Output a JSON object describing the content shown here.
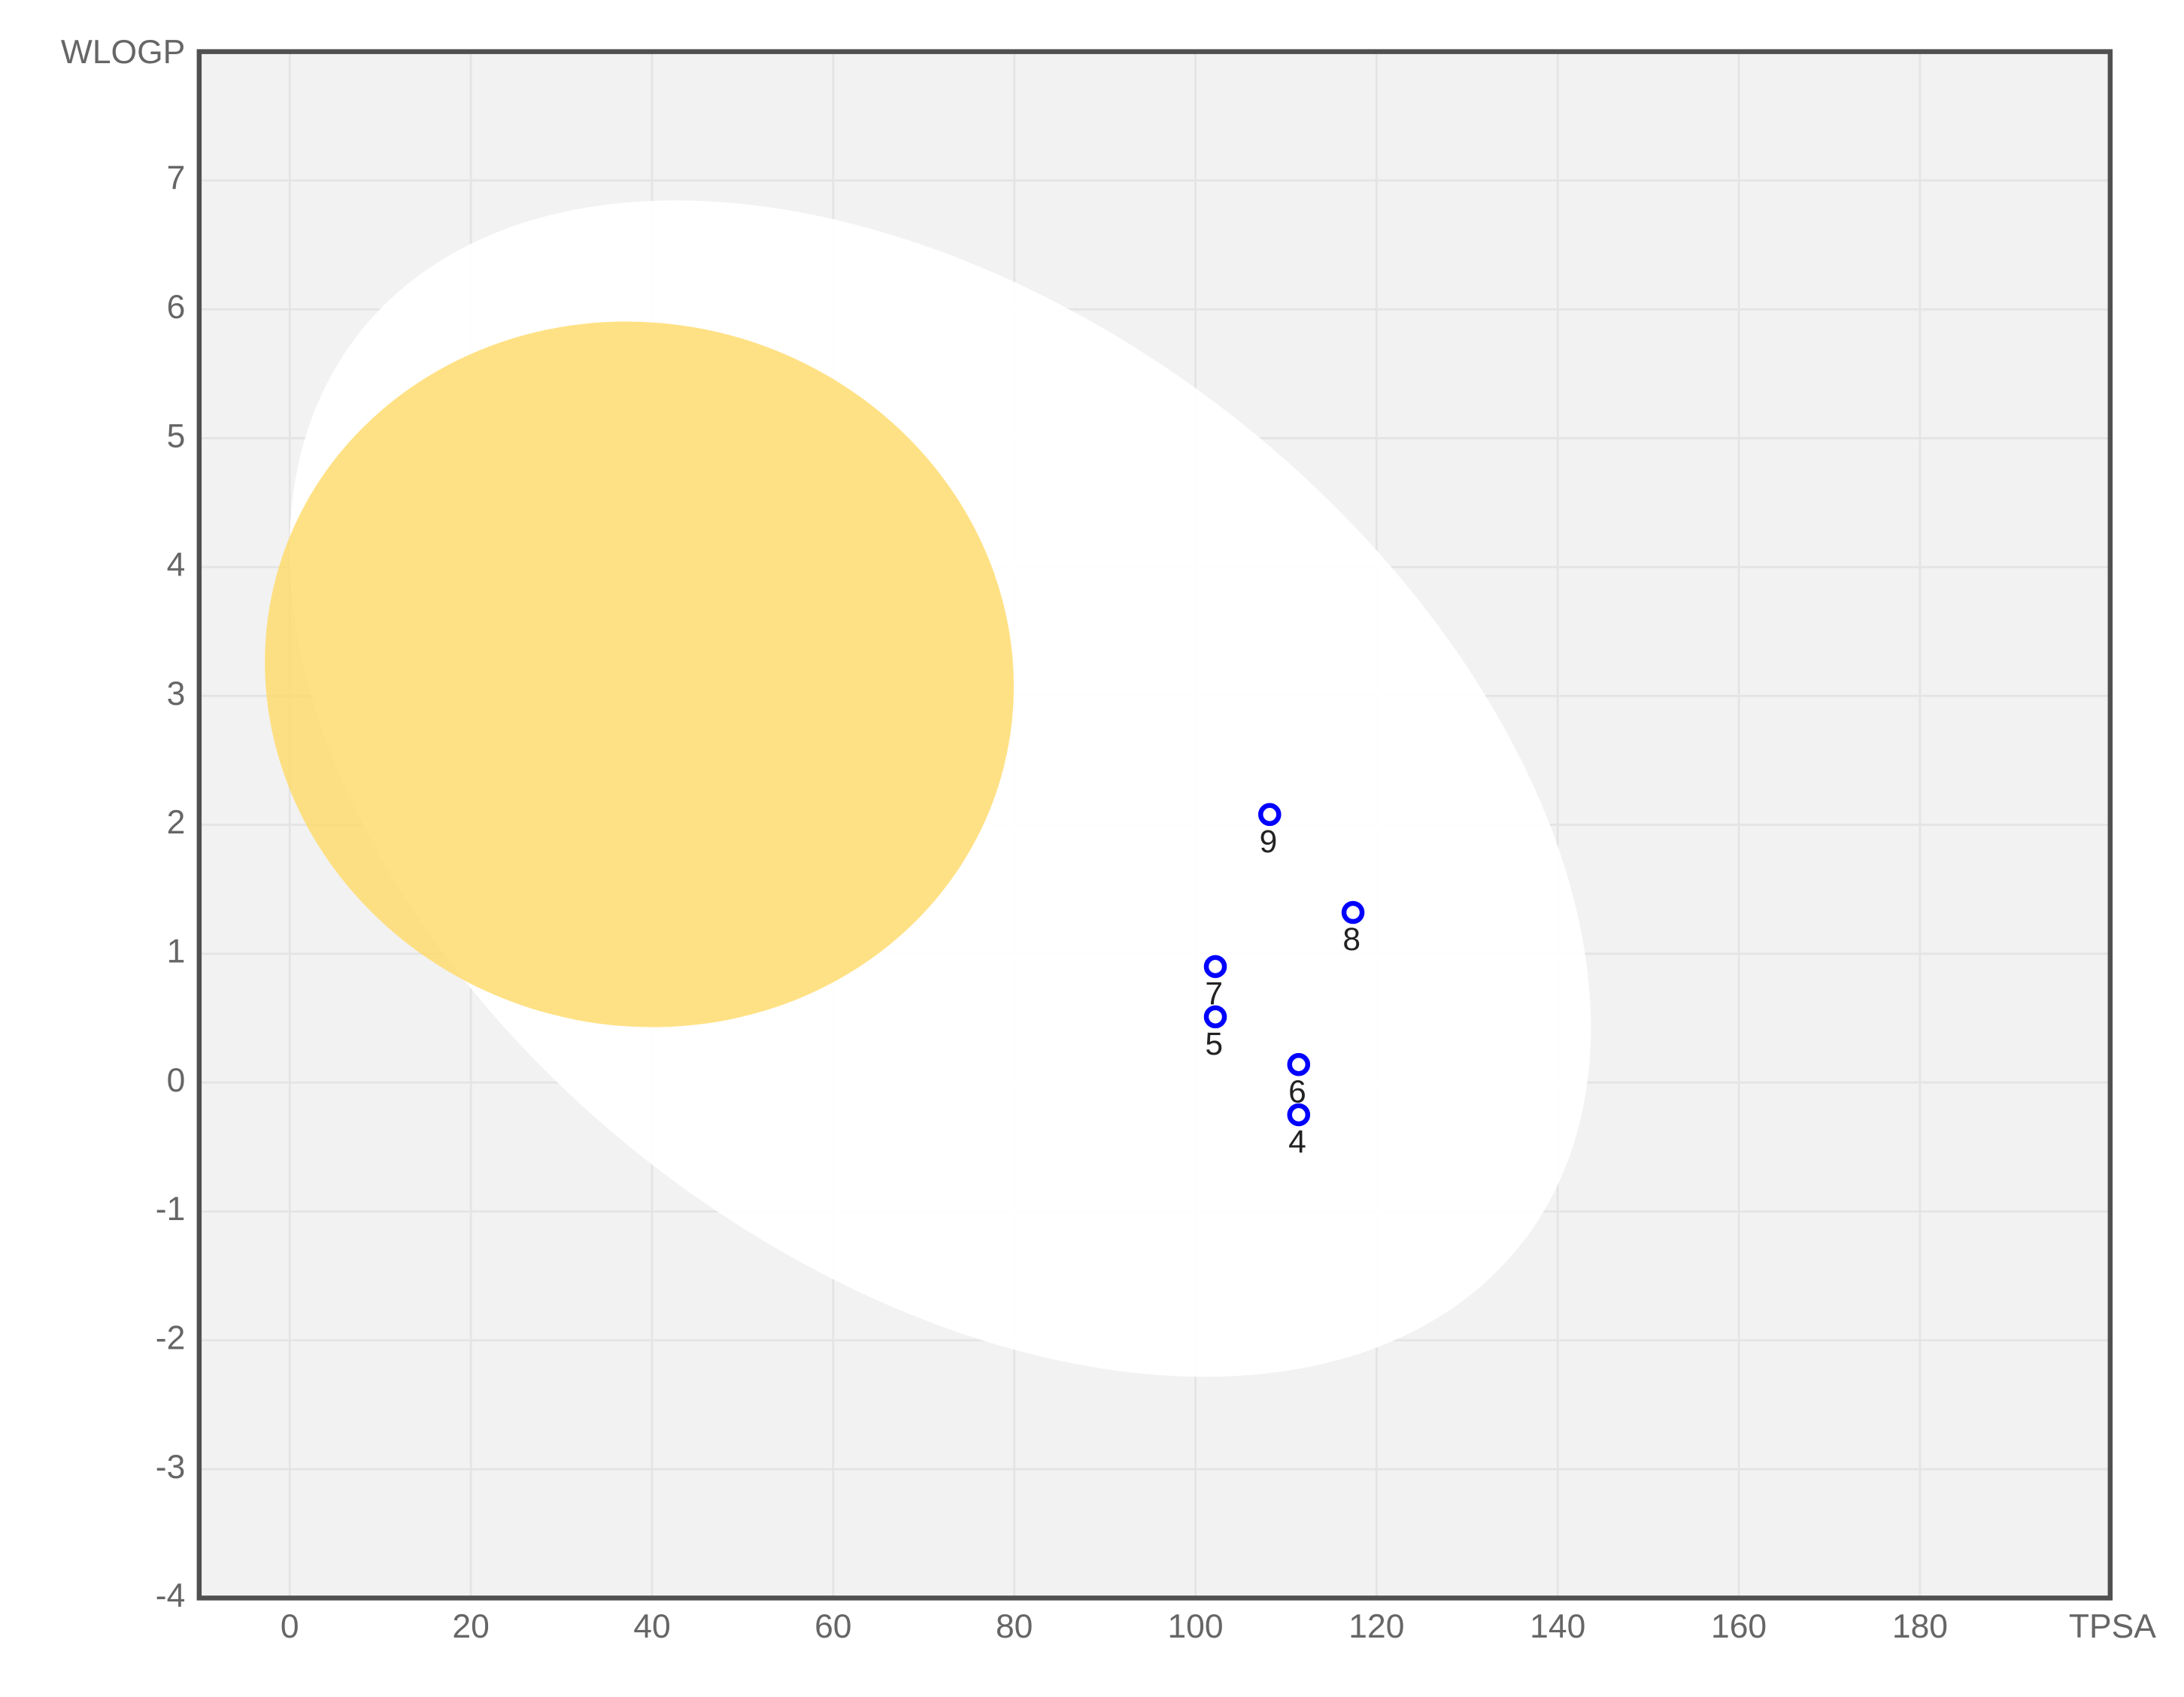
{
  "chart_data": {
    "type": "scatter",
    "x_label": "TPSA",
    "y_label": "WLOGP",
    "x": [
      108.2,
      117.4,
      102.2,
      102.2,
      111.4,
      111.4
    ],
    "values": [
      2.08,
      1.32,
      0.9,
      0.51,
      0.14,
      -0.25
    ],
    "labels": [
      "9",
      "8",
      "7",
      "5",
      "6",
      "4"
    ],
    "color": "#0000ff",
    "xlim": [
      -10,
      201
    ],
    "xticks": [
      0,
      20,
      40,
      60,
      80,
      100,
      120,
      140,
      160,
      180
    ],
    "ylim": [
      -4,
      8
    ],
    "yticks": [
      -4,
      -3,
      -2,
      -1,
      0,
      1,
      2,
      3,
      4,
      5,
      6,
      7
    ],
    "grid": true
  }
}
